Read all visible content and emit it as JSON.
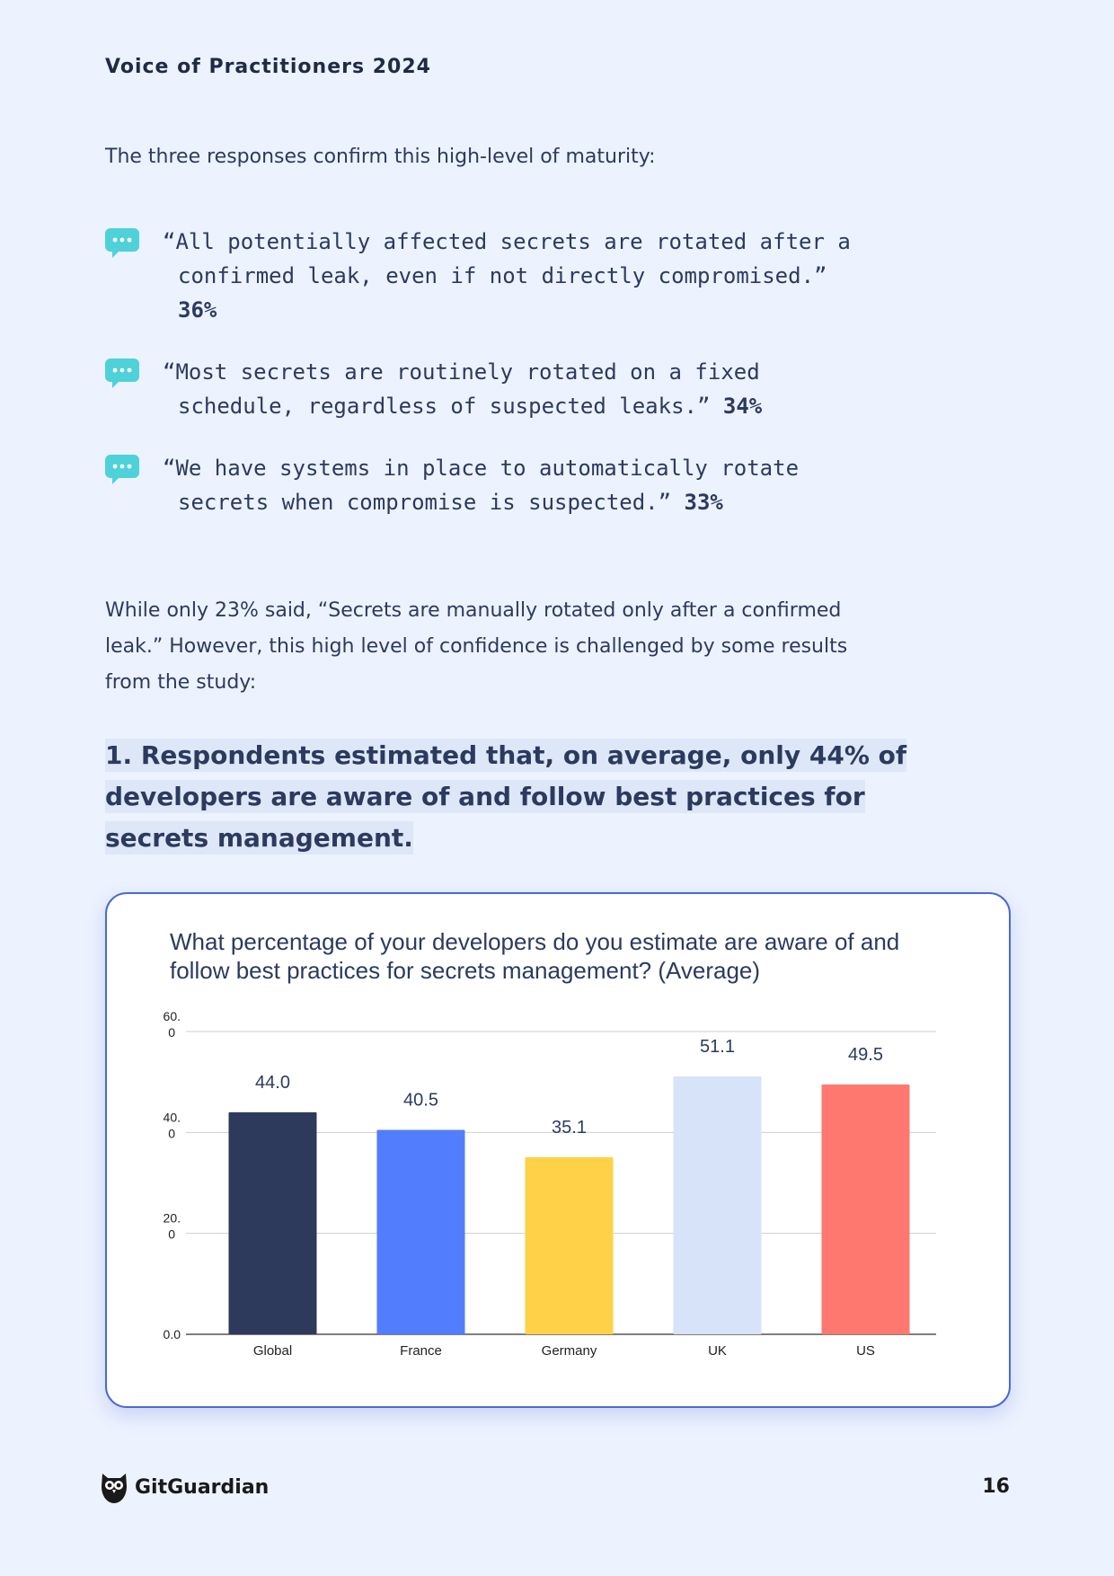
{
  "header": {
    "title": "Voice of Practitioners 2024"
  },
  "intro": "The three responses confirm this high-level of maturity:",
  "quotes": [
    {
      "text": "“All potentially affected secrets are rotated after a confirmed leak, even if not directly compromised.”",
      "percent": "36%"
    },
    {
      "text": "“Most secrets are routinely rotated on a fixed schedule, regardless of suspected leaks.”",
      "percent": "34%"
    },
    {
      "text": "“We have systems in place to automatically rotate secrets when compromise is suspected.”",
      "percent": "33%"
    }
  ],
  "paragraph": "While only 23% said, “Secrets are manually rotated only after a confirmed leak.” However, this high level of confidence is challenged by some results from the study:",
  "finding": "1. Respondents estimated that, on average, only 44% of developers are aware of and follow best practices for secrets management.",
  "chart_data": {
    "type": "bar",
    "title": "What percentage of your developers do you estimate are aware of and follow best practices for secrets management? (Average)",
    "categories": [
      "Global",
      "France",
      "Germany",
      "UK",
      "US"
    ],
    "values": [
      44.0,
      40.5,
      35.1,
      51.1,
      49.5
    ],
    "value_labels": [
      "44.0",
      "40.5",
      "35.1",
      "51.1",
      "49.5"
    ],
    "colors": [
      "#2e3a5c",
      "#527dfc",
      "#fed149",
      "#d6e3f9",
      "#fe7870"
    ],
    "yticks": [
      0,
      20,
      40,
      60
    ],
    "ytick_labels": [
      "0.0",
      "20.0",
      "40.0",
      "60.0"
    ],
    "ylim": [
      0,
      60
    ],
    "grid": true,
    "xlabel": "",
    "ylabel": ""
  },
  "footer": {
    "brand": "GitGuardian",
    "page_number": "16"
  }
}
